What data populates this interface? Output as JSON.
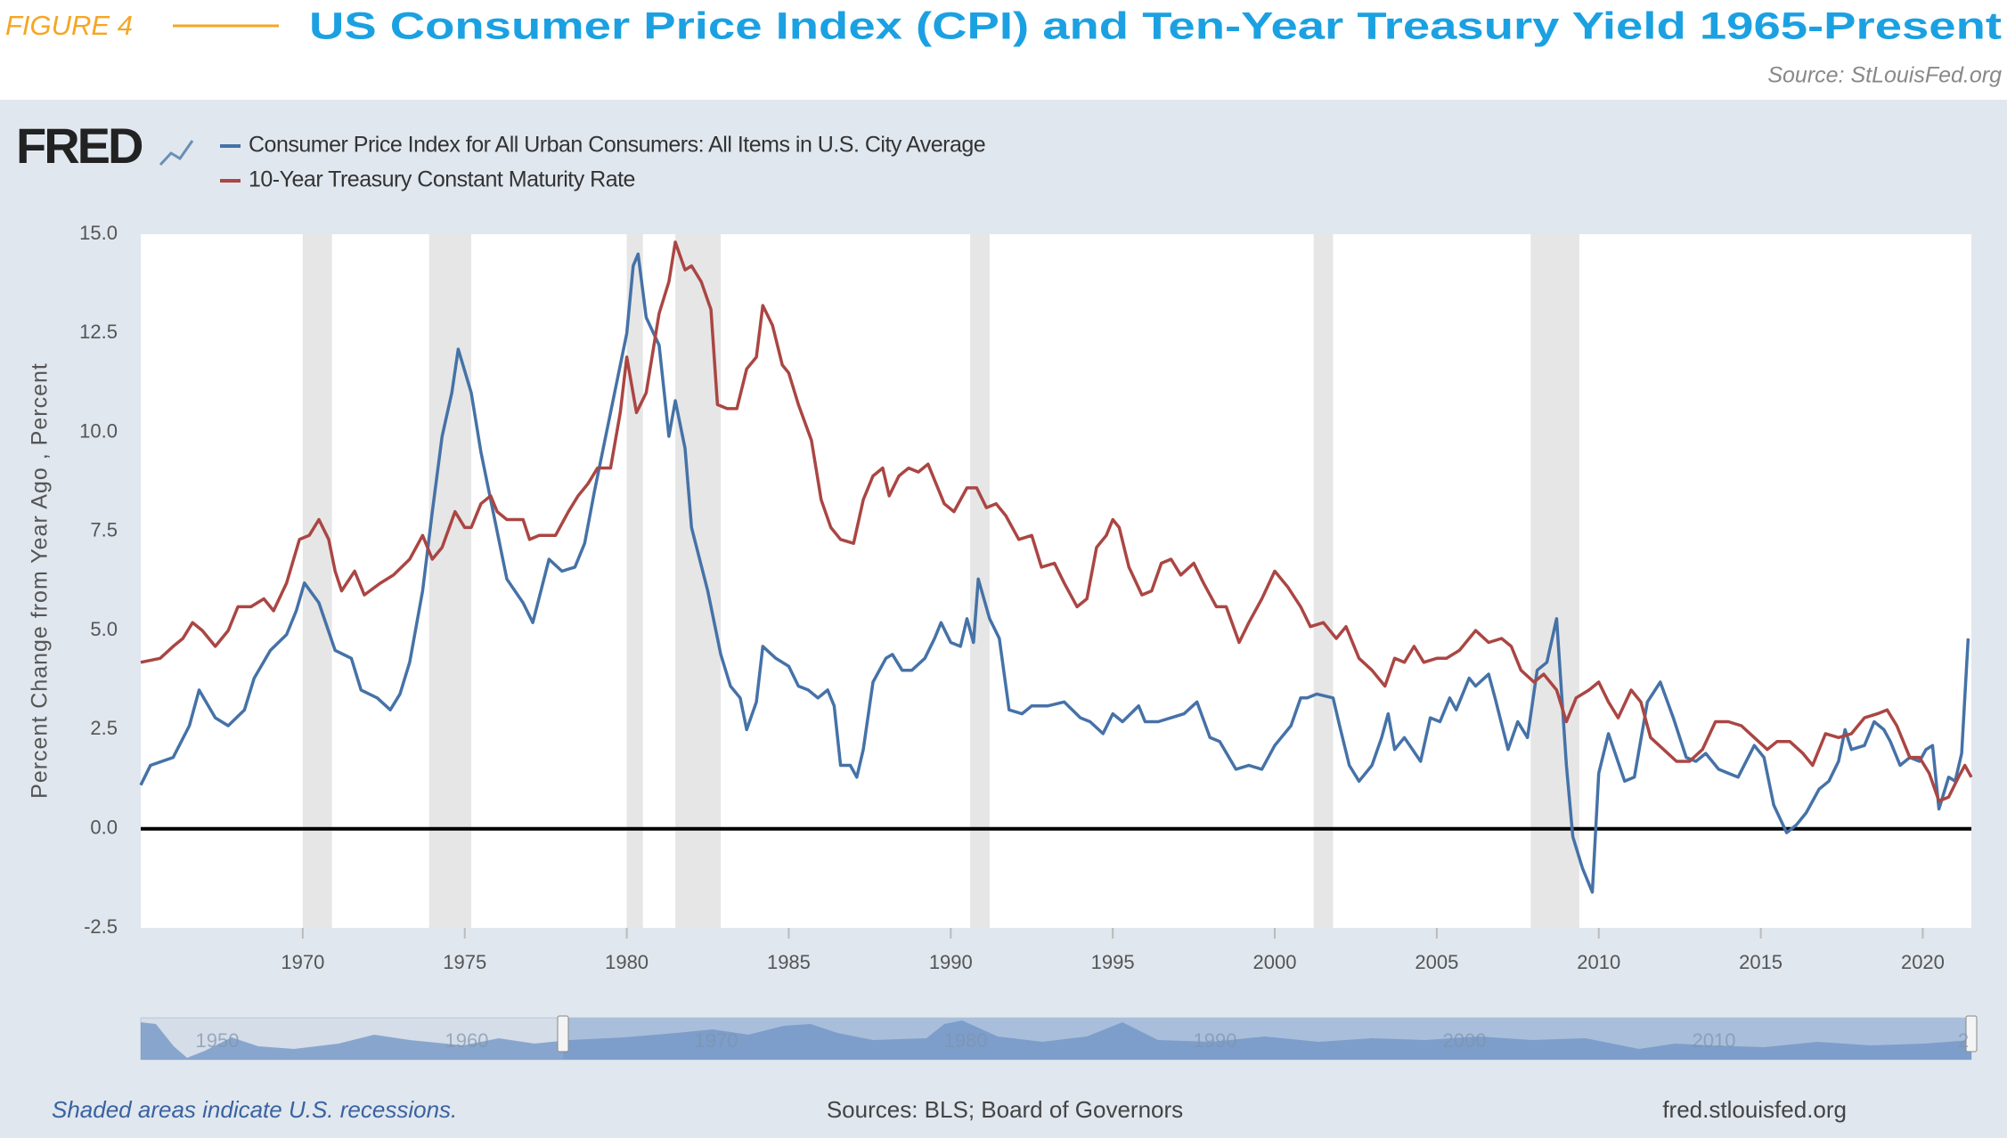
{
  "figure_label": "FIGURE 4",
  "source": "Source: StLouisFed.org",
  "chart_data": {
    "type": "line",
    "title": "US Consumer Price Index (CPI) and Ten-Year Treasury Yield 1965-Present",
    "logo": "FRED",
    "y_label": "Percent Change from Year Ago , Percent",
    "xlim": [
      1965,
      2021.5
    ],
    "xticks": [
      1970,
      1975,
      1980,
      1985,
      1990,
      1995,
      2000,
      2005,
      2010,
      2015,
      2020
    ],
    "ylim": [
      -2.5,
      15
    ],
    "yticks": [
      -2.5,
      {
        "value": 0,
        "label": "0.0"
      },
      2.5,
      {
        "value": 5,
        "label": "5.0"
      },
      7.5,
      {
        "value": 10,
        "label": "10.0"
      },
      12.5,
      {
        "value": 15,
        "label": "15.0"
      }
    ],
    "grid": false,
    "recessions": [
      [
        1970.0,
        1970.9
      ],
      [
        1973.9,
        1975.2
      ],
      [
        1980.0,
        1980.5
      ],
      [
        1981.5,
        1982.9
      ],
      [
        1990.6,
        1991.2
      ],
      [
        2001.2,
        2001.8
      ],
      [
        2007.9,
        2009.4
      ]
    ],
    "series": [
      {
        "name": "Consumer Price Index for All Urban Consumers: All Items in U.S. City Average",
        "color": "#4572a7",
        "x": [
          1965.0,
          1965.3,
          1966.0,
          1966.5,
          1966.8,
          1967.3,
          1967.7,
          1968.2,
          1968.5,
          1969.0,
          1969.5,
          1969.8,
          1970.05,
          1970.5,
          1971.0,
          1971.5,
          1971.8,
          1972.3,
          1972.7,
          1973.0,
          1973.3,
          1973.7,
          1974.0,
          1974.3,
          1974.6,
          1974.8,
          1975.2,
          1975.5,
          1976.0,
          1976.3,
          1976.8,
          1977.1,
          1977.6,
          1978.0,
          1978.4,
          1978.7,
          1979.0,
          1979.5,
          1980.0,
          1980.2,
          1980.35,
          1980.6,
          1981.0,
          1981.3,
          1981.5,
          1981.8,
          1982.0,
          1982.5,
          1982.9,
          1983.2,
          1983.5,
          1983.7,
          1984.0,
          1984.2,
          1984.6,
          1985.0,
          1985.3,
          1985.6,
          1985.9,
          1986.2,
          1986.4,
          1986.6,
          1986.9,
          1987.1,
          1987.3,
          1987.6,
          1988.0,
          1988.2,
          1988.5,
          1988.8,
          1989.2,
          1989.5,
          1989.7,
          1990.0,
          1990.3,
          1990.5,
          1990.7,
          1990.85,
          1991.2,
          1991.5,
          1991.8,
          1992.2,
          1992.5,
          1993.0,
          1993.5,
          1994.0,
          1994.3,
          1994.7,
          1995.0,
          1995.3,
          1995.8,
          1996.0,
          1996.4,
          1996.8,
          1997.2,
          1997.6,
          1998.0,
          1998.3,
          1998.8,
          1999.2,
          1999.6,
          2000.0,
          2000.5,
          2000.8,
          2001.0,
          2001.3,
          2001.8,
          2002.0,
          2002.3,
          2002.6,
          2003.0,
          2003.3,
          2003.5,
          2003.7,
          2004.0,
          2004.5,
          2004.8,
          2005.1,
          2005.4,
          2005.6,
          2006.0,
          2006.2,
          2006.6,
          2006.8,
          2007.2,
          2007.5,
          2007.8,
          2008.1,
          2008.4,
          2008.7,
          2009.0,
          2009.2,
          2009.5,
          2009.8,
          2010.0,
          2010.3,
          2010.8,
          2011.1,
          2011.5,
          2011.9,
          2012.3,
          2012.7,
          2013.0,
          2013.3,
          2013.7,
          2014.0,
          2014.3,
          2014.8,
          2015.1,
          2015.4,
          2015.8,
          2016.1,
          2016.4,
          2016.8,
          2017.1,
          2017.4,
          2017.6,
          2017.8,
          2018.2,
          2018.5,
          2018.8,
          2019.0,
          2019.3,
          2019.6,
          2019.9,
          2020.1,
          2020.3,
          2020.5,
          2020.8,
          2021.0,
          2021.2,
          2021.4
        ],
        "values": [
          1.1,
          1.6,
          1.8,
          2.6,
          3.5,
          2.8,
          2.6,
          3.0,
          3.8,
          4.5,
          4.9,
          5.5,
          6.2,
          5.7,
          4.5,
          4.3,
          3.5,
          3.3,
          3.0,
          3.4,
          4.2,
          6.0,
          8.0,
          9.9,
          11.0,
          12.1,
          11.0,
          9.5,
          7.5,
          6.3,
          5.7,
          5.2,
          6.8,
          6.5,
          6.6,
          7.2,
          8.5,
          10.5,
          12.5,
          14.2,
          14.5,
          12.9,
          12.2,
          9.9,
          10.8,
          9.6,
          7.6,
          6.0,
          4.4,
          3.6,
          3.3,
          2.5,
          3.2,
          4.6,
          4.3,
          4.1,
          3.6,
          3.5,
          3.3,
          3.5,
          3.1,
          1.6,
          1.6,
          1.3,
          2.0,
          3.7,
          4.3,
          4.4,
          4.0,
          4.0,
          4.3,
          4.8,
          5.2,
          4.7,
          4.6,
          5.3,
          4.7,
          6.3,
          5.3,
          4.8,
          3.0,
          2.9,
          3.1,
          3.1,
          3.2,
          2.8,
          2.7,
          2.4,
          2.9,
          2.7,
          3.1,
          2.7,
          2.7,
          2.8,
          2.9,
          3.2,
          2.3,
          2.2,
          1.5,
          1.6,
          1.5,
          2.1,
          2.6,
          3.3,
          3.3,
          3.4,
          3.3,
          2.6,
          1.6,
          1.2,
          1.6,
          2.3,
          2.9,
          2.0,
          2.3,
          1.7,
          2.8,
          2.7,
          3.3,
          3.0,
          3.8,
          3.6,
          3.9,
          3.3,
          2.0,
          2.7,
          2.3,
          4.0,
          4.2,
          5.3,
          1.6,
          -0.2,
          -1.0,
          -1.6,
          1.4,
          2.4,
          1.2,
          1.3,
          3.2,
          3.7,
          2.8,
          1.8,
          1.7,
          1.9,
          1.5,
          1.4,
          1.3,
          2.1,
          1.8,
          0.6,
          -0.1,
          0.1,
          0.4,
          1.0,
          1.2,
          1.7,
          2.5,
          2.0,
          2.1,
          2.7,
          2.5,
          2.2,
          1.6,
          1.8,
          1.7,
          2.0,
          2.1,
          0.5,
          1.3,
          1.2,
          1.9,
          4.8
        ]
      },
      {
        "name": "10-Year Treasury Constant Maturity Rate",
        "color": "#aa4643",
        "x": [
          1965.0,
          1965.6,
          1966.0,
          1966.3,
          1966.6,
          1966.9,
          1967.3,
          1967.7,
          1968.0,
          1968.4,
          1968.8,
          1969.1,
          1969.5,
          1969.9,
          1970.2,
          1970.5,
          1970.8,
          1971.0,
          1971.2,
          1971.6,
          1971.9,
          1972.4,
          1972.8,
          1973.3,
          1973.7,
          1974.0,
          1974.3,
          1974.7,
          1975.0,
          1975.2,
          1975.5,
          1975.8,
          1976.0,
          1976.3,
          1976.8,
          1977.0,
          1977.3,
          1977.8,
          1978.2,
          1978.5,
          1978.8,
          1979.1,
          1979.5,
          1979.8,
          1980.0,
          1980.3,
          1980.6,
          1981.0,
          1981.3,
          1981.5,
          1981.8,
          1982.0,
          1982.3,
          1982.6,
          1982.8,
          1983.1,
          1983.4,
          1983.7,
          1984.0,
          1984.2,
          1984.5,
          1984.8,
          1985.0,
          1985.3,
          1985.7,
          1986.0,
          1986.3,
          1986.6,
          1987.0,
          1987.3,
          1987.6,
          1987.9,
          1988.1,
          1988.4,
          1988.7,
          1989.0,
          1989.3,
          1989.8,
          1990.1,
          1990.5,
          1990.8,
          1991.1,
          1991.4,
          1991.7,
          1992.1,
          1992.5,
          1992.8,
          1993.2,
          1993.5,
          1993.9,
          1994.2,
          1994.5,
          1994.8,
          1995.0,
          1995.2,
          1995.5,
          1995.9,
          1996.2,
          1996.5,
          1996.8,
          1997.1,
          1997.5,
          1997.8,
          1998.2,
          1998.5,
          1998.9,
          1999.2,
          1999.6,
          2000.0,
          2000.4,
          2000.8,
          2001.1,
          2001.5,
          2001.9,
          2002.2,
          2002.6,
          2003.0,
          2003.4,
          2003.7,
          2004.0,
          2004.3,
          2004.6,
          2005.0,
          2005.3,
          2005.7,
          2006.2,
          2006.6,
          2007.0,
          2007.3,
          2007.6,
          2008.0,
          2008.3,
          2008.7,
          2009.0,
          2009.3,
          2009.7,
          2010.0,
          2010.3,
          2010.6,
          2011.0,
          2011.3,
          2011.6,
          2012.0,
          2012.4,
          2012.8,
          2013.2,
          2013.6,
          2014.0,
          2014.4,
          2014.8,
          2015.2,
          2015.5,
          2015.9,
          2016.3,
          2016.6,
          2017.0,
          2017.4,
          2017.8,
          2018.2,
          2018.6,
          2018.9,
          2019.2,
          2019.6,
          2019.9,
          2020.2,
          2020.5,
          2020.8,
          2021.1,
          2021.3,
          2021.5
        ],
        "values": [
          4.2,
          4.3,
          4.6,
          4.8,
          5.2,
          5.0,
          4.6,
          5.0,
          5.6,
          5.6,
          5.8,
          5.5,
          6.2,
          7.3,
          7.4,
          7.8,
          7.3,
          6.5,
          6.0,
          6.5,
          5.9,
          6.2,
          6.4,
          6.8,
          7.4,
          6.8,
          7.1,
          8.0,
          7.6,
          7.6,
          8.2,
          8.4,
          8.0,
          7.8,
          7.8,
          7.3,
          7.4,
          7.4,
          8.0,
          8.4,
          8.7,
          9.1,
          9.1,
          10.5,
          11.9,
          10.5,
          11.0,
          13.0,
          13.8,
          14.8,
          14.1,
          14.2,
          13.8,
          13.1,
          10.7,
          10.6,
          10.6,
          11.6,
          11.9,
          13.2,
          12.7,
          11.7,
          11.5,
          10.7,
          9.8,
          8.3,
          7.6,
          7.3,
          7.2,
          8.3,
          8.9,
          9.1,
          8.4,
          8.9,
          9.1,
          9.0,
          9.2,
          8.2,
          8.0,
          8.6,
          8.6,
          8.1,
          8.2,
          7.9,
          7.3,
          7.4,
          6.6,
          6.7,
          6.2,
          5.6,
          5.8,
          7.1,
          7.4,
          7.8,
          7.6,
          6.6,
          5.9,
          6.0,
          6.7,
          6.8,
          6.4,
          6.7,
          6.2,
          5.6,
          5.6,
          4.7,
          5.2,
          5.8,
          6.5,
          6.1,
          5.6,
          5.1,
          5.2,
          4.8,
          5.1,
          4.3,
          4.0,
          3.6,
          4.3,
          4.2,
          4.6,
          4.2,
          4.3,
          4.3,
          4.5,
          5.0,
          4.7,
          4.8,
          4.6,
          4.0,
          3.7,
          3.9,
          3.5,
          2.7,
          3.3,
          3.5,
          3.7,
          3.2,
          2.8,
          3.5,
          3.2,
          2.3,
          2.0,
          1.7,
          1.7,
          2.0,
          2.7,
          2.7,
          2.6,
          2.3,
          2.0,
          2.2,
          2.2,
          1.9,
          1.6,
          2.4,
          2.3,
          2.4,
          2.8,
          2.9,
          3.0,
          2.6,
          1.8,
          1.8,
          1.4,
          0.7,
          0.8,
          1.3,
          1.6,
          1.3
        ]
      }
    ],
    "navigator_labels": [
      "1950",
      "1960",
      "1970",
      "1980",
      "1990",
      "2000",
      "2010",
      "2"
    ],
    "footnote": "Shaded areas indicate U.S. recessions.",
    "sources": "Sources: BLS; Board of Governors",
    "site": "fred.stlouisfed.org"
  }
}
